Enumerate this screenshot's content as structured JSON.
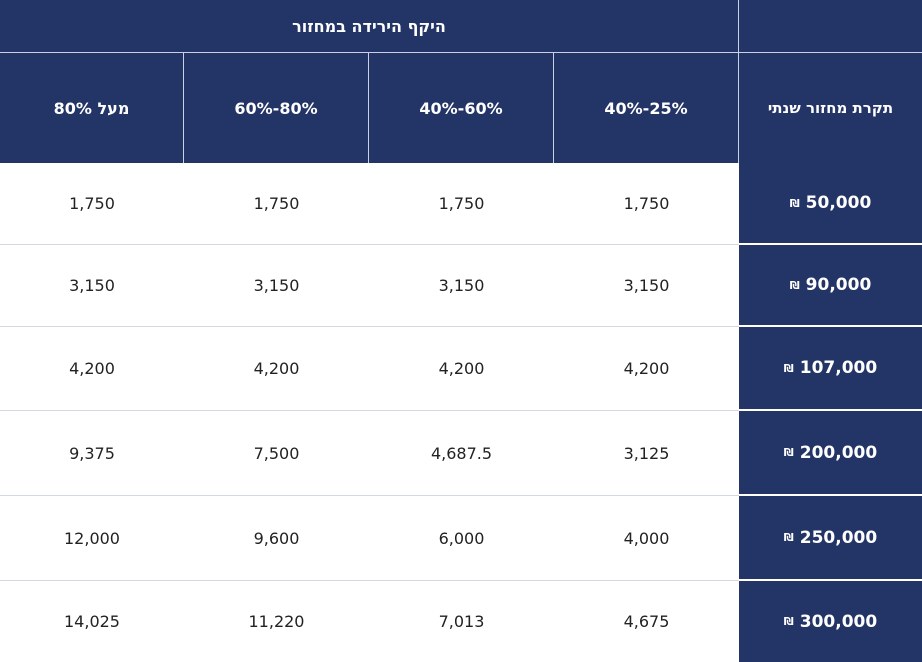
{
  "table": {
    "group_header": "היקף הירידה במחזור",
    "turnover_header": "תקרת מחזור שנתי",
    "columns": [
      "מעל 80%",
      "60%-80%",
      "40%-60%",
      "40%-25%"
    ],
    "currency_symbol": "₪",
    "rows": [
      {
        "turnover": "50,000",
        "values": [
          "1,750",
          "1,750",
          "1,750",
          "1,750"
        ]
      },
      {
        "turnover": "90,000",
        "values": [
          "3,150",
          "3,150",
          "3,150",
          "3,150"
        ]
      },
      {
        "turnover": "107,000",
        "values": [
          "4,200",
          "4,200",
          "4,200",
          "4,200"
        ]
      },
      {
        "turnover": "200,000",
        "values": [
          "9,375",
          "7,500",
          "4,687.5",
          "3,125"
        ]
      },
      {
        "turnover": "250,000",
        "values": [
          "12,000",
          "9,600",
          "6,000",
          "4,000"
        ]
      },
      {
        "turnover": "300,000",
        "values": [
          "14,025",
          "11,220",
          "7,013",
          "4,675"
        ]
      }
    ]
  },
  "colors": {
    "header_bg": "#233466",
    "header_text": "#ffffff",
    "cell_text": "#222222"
  }
}
